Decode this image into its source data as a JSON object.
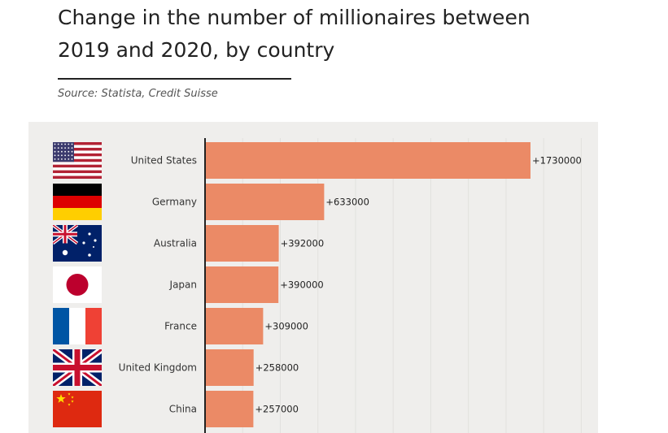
{
  "header": {
    "title": "Change in the number of millionaires between 2019 and 2020, by country",
    "source": "Source: Statista, Credit Suisse"
  },
  "colors": {
    "bar": "#eb8a66",
    "background": "#efeeec",
    "axis": "#222222"
  },
  "chart_data": {
    "type": "bar",
    "orientation": "horizontal",
    "title": "Change in the number of millionaires between 2019 and 2020, by country",
    "xlabel": "",
    "ylabel": "",
    "xlim": [
      0,
      2000000
    ],
    "grid": true,
    "categories": [
      "United States",
      "Germany",
      "Australia",
      "Japan",
      "France",
      "United Kingdom",
      "China"
    ],
    "values": [
      1730000,
      633000,
      392000,
      390000,
      309000,
      258000,
      257000
    ],
    "value_labels": [
      "+1730000",
      "+633000",
      "+392000",
      "+390000",
      "+309000",
      "+258000",
      "+257000"
    ],
    "flags": [
      "us-flag-icon",
      "germany-flag-icon",
      "australia-flag-icon",
      "japan-flag-icon",
      "france-flag-icon",
      "uk-flag-icon",
      "china-flag-icon"
    ]
  }
}
